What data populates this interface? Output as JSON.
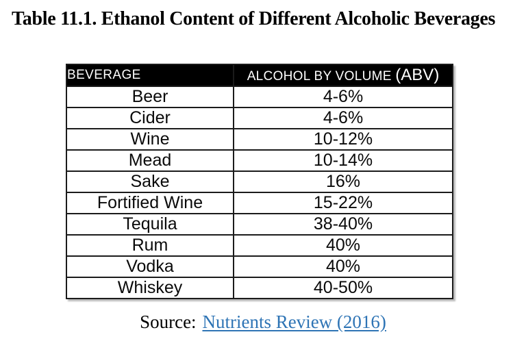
{
  "page": {
    "title": "Table 11.1. Ethanol Content of Different Alcoholic Beverages"
  },
  "table": {
    "header": {
      "beverage": "BEVERAGE",
      "abv_main": "ALCOHOL BY VOLUME",
      "abv_paren": "(ABV)"
    },
    "rows": [
      {
        "beverage": "Beer",
        "abv": "4-6%"
      },
      {
        "beverage": "Cider",
        "abv": "4-6%"
      },
      {
        "beverage": "Wine",
        "abv": "10-12%"
      },
      {
        "beverage": "Mead",
        "abv": "10-14%"
      },
      {
        "beverage": "Sake",
        "abv": "16%"
      },
      {
        "beverage": "Fortified Wine",
        "abv": "15-22%"
      },
      {
        "beverage": "Tequila",
        "abv": "38-40%"
      },
      {
        "beverage": "Rum",
        "abv": "40%"
      },
      {
        "beverage": "Vodka",
        "abv": "40%"
      },
      {
        "beverage": "Whiskey",
        "abv": "40-50%"
      }
    ]
  },
  "source": {
    "prefix": "Source:",
    "link_text": "Nutrients Review (2016)",
    "link_color": "#2E74B5"
  },
  "colors": {
    "header_bg": "#000000",
    "header_text": "#FFFFFF",
    "border": "#1B1B1B",
    "body_text": "#0A0A0A",
    "link": "#2E74B5"
  }
}
